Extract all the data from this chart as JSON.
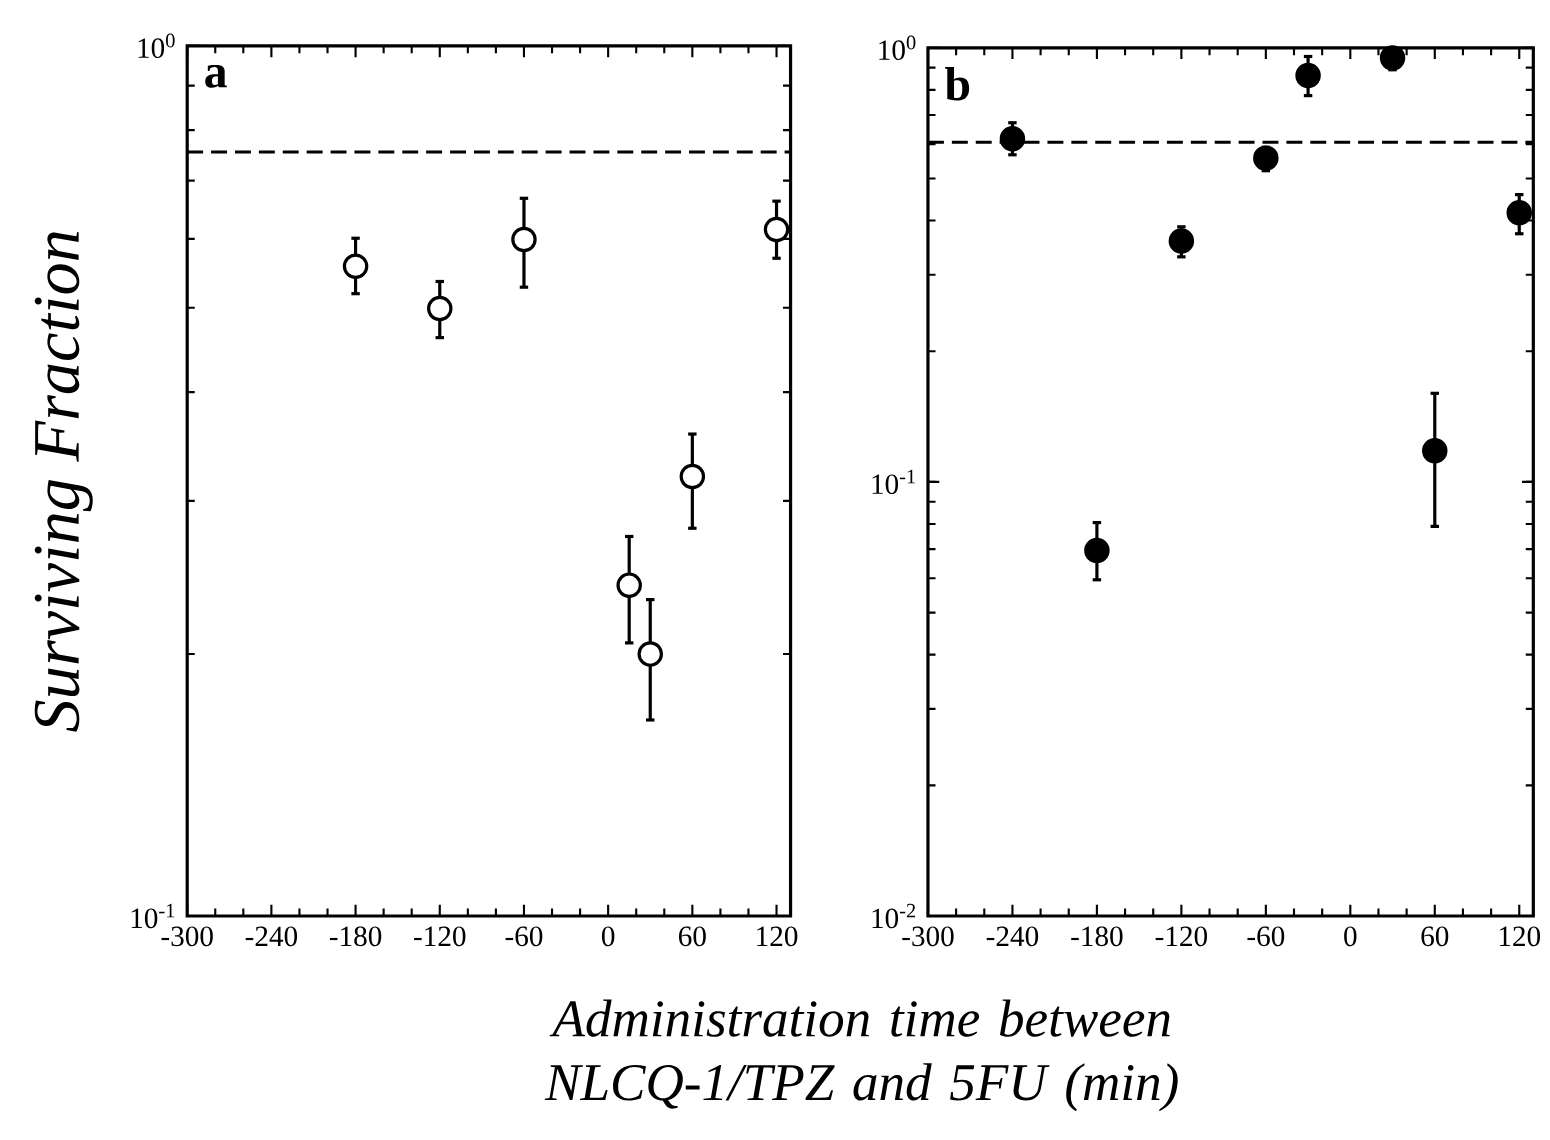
{
  "chart_data": [
    {
      "type": "scatter",
      "title": "a",
      "ylabel": "Surviving Fraction",
      "xlabel": "Administration time between NLCQ-1/TPZ and 5FU (min)",
      "x": [
        -180,
        -120,
        -60,
        15,
        30,
        60,
        120
      ],
      "series": [
        {
          "color": "#ffffff",
          "values": [
            0.558,
            0.499,
            0.599,
            0.24,
            0.2,
            0.32,
            0.615
          ],
          "errors": [
            [
              0.519,
              0.601
            ],
            [
              0.462,
              0.536
            ],
            [
              0.528,
              0.668
            ],
            [
              0.206,
              0.273
            ],
            [
              0.168,
              0.231
            ],
            [
              0.279,
              0.358
            ],
            [
              0.57,
              0.663
            ]
          ]
        }
      ],
      "marker": "circle",
      "log": "y",
      "xlim": [
        -300,
        130
      ],
      "ylim": [
        0.1,
        1
      ],
      "xticks": [
        -300,
        -240,
        -180,
        -120,
        -60,
        0,
        60,
        120
      ],
      "yticks": [
        {
          "value": 0.1,
          "label": "10$^{-1}$"
        },
        {
          "value": 1,
          "label": "10$^{0}$"
        }
      ],
      "ref_lines": [
        {
          "axis": "y",
          "value": 0.755,
          "line_style": "dashed"
        }
      ]
    },
    {
      "type": "scatter",
      "title": "b",
      "x": [
        -240,
        -180,
        -120,
        -60,
        -30,
        30,
        60,
        120
      ],
      "series": [
        {
          "color": "#000000",
          "values": [
            0.617,
            0.0695,
            0.359,
            0.557,
            0.863,
            0.948,
            0.118,
            0.417
          ],
          "errors": [
            [
              0.567,
              0.672
            ],
            [
              0.0595,
              0.0806
            ],
            [
              0.33,
              0.387
            ],
            [
              0.521,
              0.59
            ],
            [
              0.776,
              0.955
            ],
            [
              0.89,
              1.0
            ],
            [
              0.079,
              0.16
            ],
            [
              0.373,
              0.459
            ]
          ]
        }
      ],
      "marker": "circle",
      "log": "y",
      "xlim": [
        -300,
        130
      ],
      "ylim": [
        0.01,
        1
      ],
      "xticks": [
        -300,
        -240,
        -180,
        -120,
        -60,
        0,
        60,
        120
      ],
      "yticks": [
        {
          "value": 0.01,
          "label": "10$^{-2}$"
        },
        {
          "value": 0.1,
          "label": "10$^{-1}$"
        },
        {
          "value": 1,
          "label": "10$^{0}$"
        }
      ],
      "ref_lines": [
        {
          "axis": "y",
          "value": 0.606,
          "line_style": "dashed"
        }
      ]
    }
  ]
}
